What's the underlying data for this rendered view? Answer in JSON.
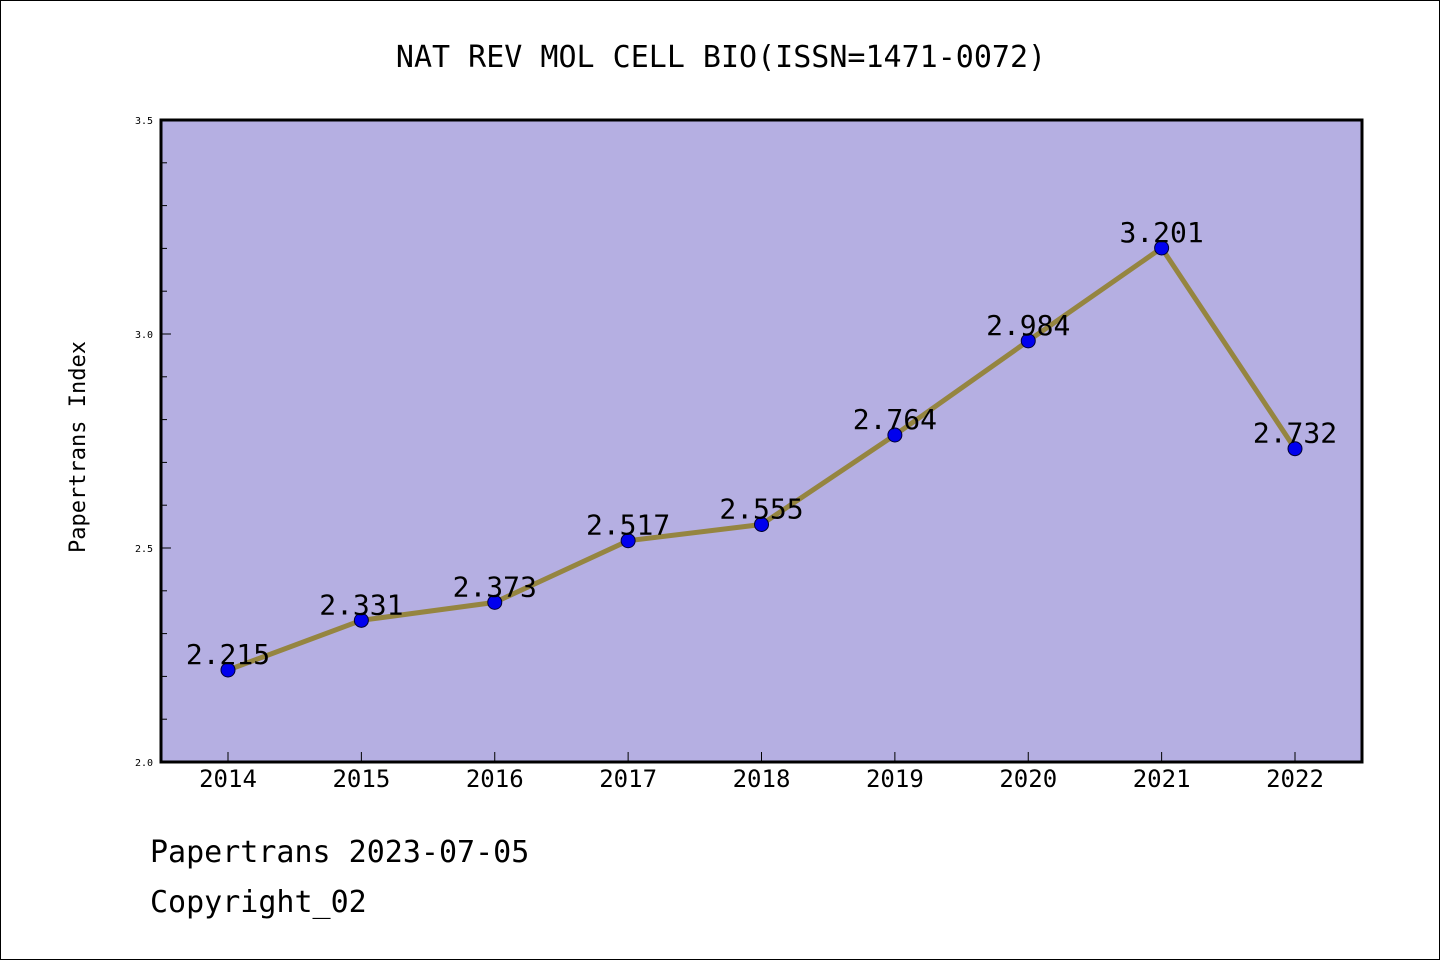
{
  "chart_data": {
    "type": "line",
    "title": "NAT REV MOL CELL BIO(ISSN=1471-0072)",
    "ylabel": "Papertrans Index",
    "xlabel": "",
    "categories": [
      "2014",
      "2015",
      "2016",
      "2017",
      "2018",
      "2019",
      "2020",
      "2021",
      "2022"
    ],
    "values": [
      2.215,
      2.331,
      2.373,
      2.517,
      2.555,
      2.764,
      2.984,
      3.201,
      2.732
    ],
    "data_labels": [
      "2.215",
      "2.331",
      "2.373",
      "2.517",
      "2.555",
      "2.764",
      "2.984",
      "3.201",
      "2.732"
    ],
    "ylim": [
      2.0,
      3.5
    ],
    "yticks_major": [
      "2.0",
      "2.5",
      "3.0",
      "3.5"
    ],
    "grid": false,
    "colors": {
      "plot_background": "#b5afe2",
      "line": "#958540",
      "marker": "#0000ee"
    }
  },
  "footer": {
    "line1": "Papertrans 2023-07-05",
    "line2": "Copyright_02"
  }
}
